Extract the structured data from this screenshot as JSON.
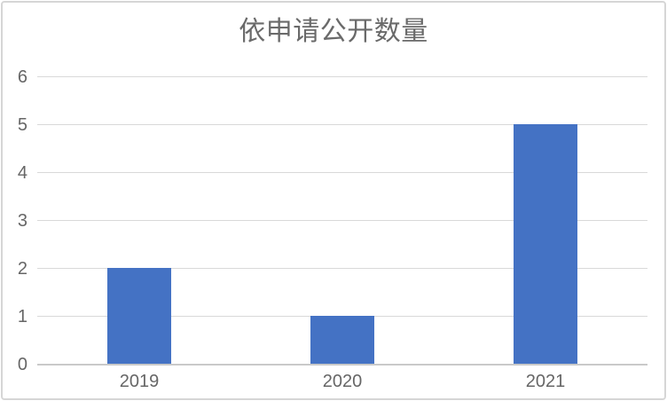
{
  "chart_data": {
    "type": "bar",
    "title": "依申请公开数量",
    "categories": [
      "2019",
      "2020",
      "2021"
    ],
    "values": [
      2,
      1,
      5
    ],
    "y_ticks": [
      0,
      1,
      2,
      3,
      4,
      5,
      6
    ],
    "ylim": [
      0,
      6
    ],
    "xlabel": "",
    "ylabel": "",
    "grid": "horizontal",
    "legend": "none",
    "bar_color": "#4472C4",
    "gridline_color": "#d9d9d9",
    "axis_line_color": "#c9c9c9",
    "tick_text_color": "#666666",
    "title_color": "#6a6a6a",
    "frame_border_color": "#d6d6d6",
    "background_color": "#ffffff"
  }
}
